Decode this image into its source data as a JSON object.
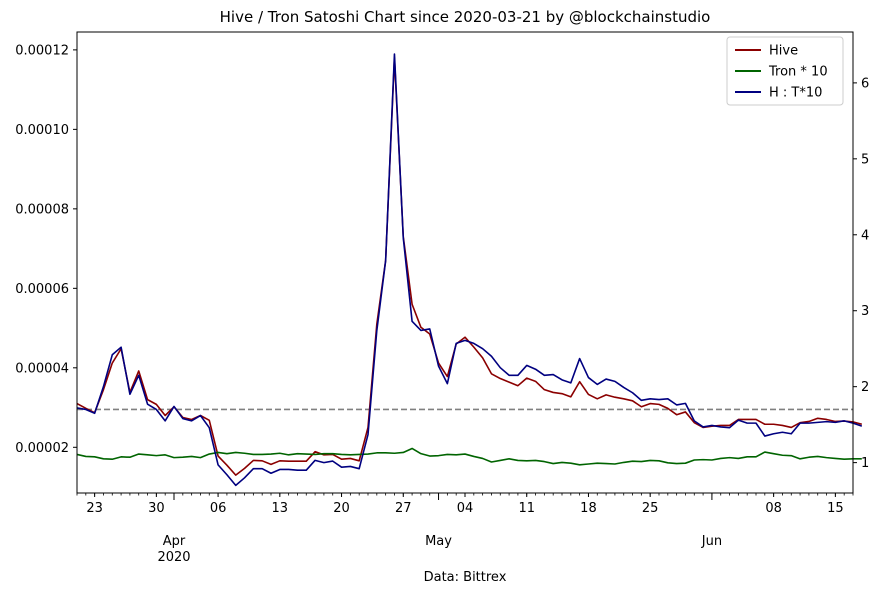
{
  "chart_data": {
    "type": "line",
    "title": "Hive / Tron Satoshi Chart since 2020-03-21 by @blockchainstudio",
    "xlabel": "Data: Bittrex",
    "x_start": "2020-03-21",
    "x_end": "2020-06-17",
    "x_ticks_day": [
      {
        "date": "2020-03-23",
        "label": "23"
      },
      {
        "date": "2020-03-30",
        "label": "30"
      },
      {
        "date": "2020-04-06",
        "label": "06"
      },
      {
        "date": "2020-04-13",
        "label": "13"
      },
      {
        "date": "2020-04-20",
        "label": "20"
      },
      {
        "date": "2020-04-27",
        "label": "27"
      },
      {
        "date": "2020-05-04",
        "label": "04"
      },
      {
        "date": "2020-05-11",
        "label": "11"
      },
      {
        "date": "2020-05-18",
        "label": "18"
      },
      {
        "date": "2020-05-25",
        "label": "25"
      },
      {
        "date": "2020-06-08",
        "label": "08"
      },
      {
        "date": "2020-06-15",
        "label": "15"
      }
    ],
    "x_ticks_month": [
      {
        "date": "2020-04-01",
        "label": "Apr",
        "sublabel": "2020"
      },
      {
        "date": "2020-05-01",
        "label": "May",
        "sublabel": ""
      },
      {
        "date": "2020-06-01",
        "label": "Jun",
        "sublabel": ""
      }
    ],
    "y_left": {
      "lim": [
        8.5e-06,
        0.0001245
      ],
      "ticks": [
        2e-05,
        4e-05,
        6e-05,
        8e-05,
        0.0001,
        0.00012
      ],
      "tick_labels": [
        "0.00002",
        "0.00004",
        "0.00006",
        "0.00008",
        "0.00010",
        "0.00012"
      ]
    },
    "y_right": {
      "lim": [
        0.6,
        6.67
      ],
      "ticks": [
        1,
        2,
        3,
        4,
        5,
        6
      ],
      "tick_labels": [
        "1",
        "2",
        "3",
        "4",
        "5",
        "6"
      ]
    },
    "reference_line": {
      "axis": "right",
      "value": 1.7,
      "color": "#808080",
      "style": "dashed"
    },
    "legend": {
      "position": "top-right"
    },
    "series": [
      {
        "name": "Hive",
        "axis": "left",
        "color": "#8b0000",
        "values": [
          3.1e-05,
          2.98e-05,
          2.87e-05,
          3.45e-05,
          4.12e-05,
          4.48e-05,
          3.38e-05,
          3.92e-05,
          3.2e-05,
          3.08e-05,
          2.8e-05,
          3.02e-05,
          2.75e-05,
          2.7e-05,
          2.8e-05,
          2.68e-05,
          1.78e-05,
          1.55e-05,
          1.3e-05,
          1.47e-05,
          1.67e-05,
          1.66e-05,
          1.57e-05,
          1.66e-05,
          1.65e-05,
          1.65e-05,
          1.65e-05,
          1.89e-05,
          1.81e-05,
          1.82e-05,
          1.7e-05,
          1.72e-05,
          1.66e-05,
          2.5e-05,
          5.1e-05,
          6.7e-05,
          0.000118,
          7.3e-05,
          5.6e-05,
          5.02e-05,
          4.85e-05,
          4.12e-05,
          3.78e-05,
          4.6e-05,
          4.77e-05,
          4.52e-05,
          4.25e-05,
          3.85e-05,
          3.73e-05,
          3.64e-05,
          3.55e-05,
          3.74e-05,
          3.66e-05,
          3.45e-05,
          3.38e-05,
          3.35e-05,
          3.27e-05,
          3.65e-05,
          3.33e-05,
          3.22e-05,
          3.32e-05,
          3.26e-05,
          3.22e-05,
          3.17e-05,
          3.02e-05,
          3.1e-05,
          3.08e-05,
          2.98e-05,
          2.82e-05,
          2.89e-05,
          2.62e-05,
          2.5e-05,
          2.53e-05,
          2.55e-05,
          2.55e-05,
          2.7e-05,
          2.7e-05,
          2.7e-05,
          2.58e-05,
          2.58e-05,
          2.55e-05,
          2.5e-05,
          2.62e-05,
          2.65e-05,
          2.73e-05,
          2.7e-05,
          2.65e-05,
          2.66e-05,
          2.64e-05,
          2.58e-05
        ]
      },
      {
        "name": "Tron * 10",
        "axis": "left",
        "color": "#006400",
        "values": [
          1.82e-05,
          1.77e-05,
          1.76e-05,
          1.71e-05,
          1.7e-05,
          1.76e-05,
          1.75e-05,
          1.83e-05,
          1.81e-05,
          1.79e-05,
          1.81e-05,
          1.74e-05,
          1.75e-05,
          1.77e-05,
          1.74e-05,
          1.83e-05,
          1.87e-05,
          1.84e-05,
          1.87e-05,
          1.85e-05,
          1.82e-05,
          1.82e-05,
          1.83e-05,
          1.85e-05,
          1.81e-05,
          1.84e-05,
          1.83e-05,
          1.82e-05,
          1.84e-05,
          1.84e-05,
          1.82e-05,
          1.81e-05,
          1.82e-05,
          1.83e-05,
          1.86e-05,
          1.86e-05,
          1.85e-05,
          1.87e-05,
          1.97e-05,
          1.84e-05,
          1.78e-05,
          1.79e-05,
          1.82e-05,
          1.81e-05,
          1.83e-05,
          1.77e-05,
          1.72e-05,
          1.63e-05,
          1.67e-05,
          1.71e-05,
          1.67e-05,
          1.66e-05,
          1.67e-05,
          1.64e-05,
          1.59e-05,
          1.62e-05,
          1.6e-05,
          1.56e-05,
          1.58e-05,
          1.6e-05,
          1.59e-05,
          1.58e-05,
          1.62e-05,
          1.65e-05,
          1.64e-05,
          1.67e-05,
          1.66e-05,
          1.61e-05,
          1.59e-05,
          1.6e-05,
          1.68e-05,
          1.69e-05,
          1.68e-05,
          1.72e-05,
          1.74e-05,
          1.72e-05,
          1.76e-05,
          1.76e-05,
          1.88e-05,
          1.84e-05,
          1.8e-05,
          1.79e-05,
          1.71e-05,
          1.75e-05,
          1.77e-05,
          1.74e-05,
          1.72e-05,
          1.7e-05,
          1.71e-05,
          1.71e-05
        ]
      },
      {
        "name": "H : T*10",
        "axis": "right",
        "color": "#000080",
        "values": [
          1.72,
          1.7,
          1.65,
          2.0,
          2.42,
          2.52,
          1.9,
          2.15,
          1.77,
          1.7,
          1.55,
          1.74,
          1.58,
          1.55,
          1.62,
          1.46,
          0.97,
          0.84,
          0.7,
          0.8,
          0.92,
          0.92,
          0.86,
          0.91,
          0.91,
          0.9,
          0.9,
          1.03,
          1.0,
          1.02,
          0.94,
          0.95,
          0.92,
          1.37,
          2.74,
          3.66,
          6.38,
          3.96,
          2.86,
          2.74,
          2.76,
          2.27,
          2.04,
          2.57,
          2.61,
          2.57,
          2.5,
          2.4,
          2.25,
          2.15,
          2.15,
          2.28,
          2.23,
          2.15,
          2.16,
          2.09,
          2.05,
          2.37,
          2.12,
          2.03,
          2.1,
          2.07,
          1.99,
          1.92,
          1.82,
          1.84,
          1.83,
          1.84,
          1.76,
          1.78,
          1.55,
          1.47,
          1.49,
          1.47,
          1.46,
          1.56,
          1.52,
          1.52,
          1.35,
          1.38,
          1.4,
          1.38,
          1.52,
          1.52,
          1.53,
          1.54,
          1.53,
          1.55,
          1.52,
          1.48
        ]
      }
    ]
  }
}
